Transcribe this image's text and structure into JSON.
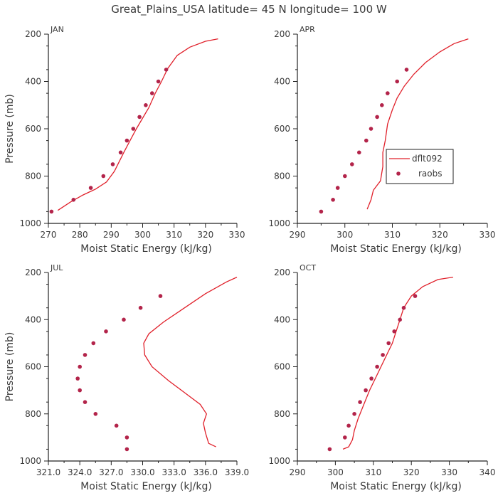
{
  "title": "Great_Plains_USA   latitude= 45 N longitude= 100 W",
  "colors": {
    "model": "#e0202a",
    "obs": "#b3244a",
    "axis": "#222222",
    "text": "#3a3a3a"
  },
  "legend": {
    "model": "dflt092",
    "obs": "raobs",
    "panel": 1
  },
  "chart_data": [
    {
      "type": "line",
      "panel": "JAN",
      "xlabel": "Moist Static Energy (kJ/kg)",
      "ylabel": "Pressure (mb)",
      "xlim": [
        270,
        330
      ],
      "ylim": [
        1000,
        200
      ],
      "xticks": [
        270,
        280,
        290,
        300,
        310,
        320,
        330
      ],
      "xtick_labels": [
        "270",
        "280",
        "290",
        "300",
        "310",
        "320",
        "330"
      ],
      "yticks": [
        200,
        400,
        600,
        800,
        1000
      ],
      "ytick_labels": [
        "200",
        "400",
        "600",
        "800",
        "1000"
      ],
      "series": [
        {
          "points": [
            [
              273,
              945
            ],
            [
              277,
              910
            ],
            [
              281,
              880
            ],
            [
              285,
              855
            ],
            [
              288.5,
              825
            ],
            [
              291,
              780
            ],
            [
              292.5,
              740
            ],
            [
              294,
              700
            ],
            [
              296,
              650
            ],
            [
              298,
              600
            ],
            [
              300,
              555
            ],
            [
              302,
              510
            ],
            [
              304,
              450
            ],
            [
              306,
              400
            ],
            [
              308,
              345
            ],
            [
              311,
              290
            ],
            [
              315,
              255
            ],
            [
              320,
              230
            ],
            [
              324,
              220
            ]
          ]
        },
        {
          "points": [
            [
              271,
              950
            ],
            [
              278,
              900
            ],
            [
              283.5,
              850
            ],
            [
              287.5,
              800
            ],
            [
              290.5,
              750
            ],
            [
              293,
              700
            ],
            [
              295,
              650
            ],
            [
              297,
              600
            ],
            [
              299,
              550
            ],
            [
              301,
              500
            ],
            [
              303,
              450
            ],
            [
              305,
              400
            ],
            [
              307.5,
              350
            ]
          ]
        }
      ]
    },
    {
      "type": "line",
      "panel": "APR",
      "xlabel": "Moist Static Energy (kJ/kg)",
      "ylabel": "",
      "xlim": [
        290,
        330
      ],
      "ylim": [
        1000,
        200
      ],
      "xticks": [
        290,
        300,
        310,
        320,
        330
      ],
      "xtick_labels": [
        "290",
        "300",
        "310",
        "320",
        "330"
      ],
      "yticks": [
        200,
        400,
        600,
        800,
        1000
      ],
      "ytick_labels": [
        "200",
        "400",
        "600",
        "800",
        "1000"
      ],
      "series": [
        {
          "points": [
            [
              304.7,
              940
            ],
            [
              305.5,
              900
            ],
            [
              306,
              860
            ],
            [
              307.5,
              820
            ],
            [
              308,
              760
            ],
            [
              308,
              700
            ],
            [
              308.5,
              650
            ],
            [
              309,
              580
            ],
            [
              310,
              520
            ],
            [
              311,
              470
            ],
            [
              312.5,
              420
            ],
            [
              314.5,
              370
            ],
            [
              317,
              320
            ],
            [
              320,
              275
            ],
            [
              323,
              240
            ],
            [
              326,
              220
            ]
          ]
        },
        {
          "points": [
            [
              295,
              950
            ],
            [
              297.5,
              900
            ],
            [
              298.5,
              850
            ],
            [
              300,
              800
            ],
            [
              301.5,
              750
            ],
            [
              303,
              700
            ],
            [
              304.5,
              650
            ],
            [
              305.5,
              600
            ],
            [
              306.8,
              550
            ],
            [
              307.8,
              500
            ],
            [
              309,
              450
            ],
            [
              311,
              400
            ],
            [
              313,
              350
            ]
          ]
        }
      ]
    },
    {
      "type": "line",
      "panel": "JUL",
      "xlabel": "Moist Static Energy (kJ/kg)",
      "ylabel": "Pressure (mb)",
      "xlim": [
        321,
        339
      ],
      "ylim": [
        1000,
        200
      ],
      "xticks": [
        321,
        324,
        327,
        330,
        333,
        336,
        339
      ],
      "xtick_labels": [
        "321.0",
        "324.0",
        "327.0",
        "330.0",
        "333.0",
        "336.0",
        "339.0"
      ],
      "yticks": [
        200,
        400,
        600,
        800,
        1000
      ],
      "ytick_labels": [
        "200",
        "400",
        "600",
        "800",
        "1000"
      ],
      "series": [
        {
          "points": [
            [
              337,
              940
            ],
            [
              336.3,
              925
            ],
            [
              336,
              880
            ],
            [
              335.8,
              840
            ],
            [
              336.1,
              800
            ],
            [
              335.5,
              760
            ],
            [
              334,
              710
            ],
            [
              332.5,
              660
            ],
            [
              330.9,
              600
            ],
            [
              330.2,
              550
            ],
            [
              330.1,
              500
            ],
            [
              330.6,
              460
            ],
            [
              332,
              410
            ],
            [
              334,
              350
            ],
            [
              336,
              290
            ],
            [
              338,
              240
            ],
            [
              339,
              220
            ]
          ]
        },
        {
          "points": [
            [
              328.5,
              950
            ],
            [
              328.5,
              900
            ],
            [
              327.5,
              850
            ],
            [
              325.5,
              800
            ],
            [
              324.5,
              750
            ],
            [
              324,
              700
            ],
            [
              323.8,
              650
            ],
            [
              324,
              600
            ],
            [
              324.5,
              550
            ],
            [
              325.3,
              500
            ],
            [
              326.5,
              450
            ],
            [
              328.2,
              400
            ],
            [
              329.8,
              350
            ],
            [
              331.7,
              300
            ]
          ]
        }
      ]
    },
    {
      "type": "line",
      "panel": "OCT",
      "xlabel": "Moist Static Energy (kJ/kg)",
      "ylabel": "",
      "xlim": [
        290,
        340
      ],
      "ylim": [
        1000,
        200
      ],
      "xticks": [
        290,
        300,
        310,
        320,
        330,
        340
      ],
      "xtick_labels": [
        "290",
        "300",
        "310",
        "320",
        "330",
        "340"
      ],
      "yticks": [
        200,
        400,
        600,
        800,
        1000
      ],
      "ytick_labels": [
        "200",
        "400",
        "600",
        "800",
        "1000"
      ],
      "series": [
        {
          "points": [
            [
              302,
              950
            ],
            [
              303.5,
              940
            ],
            [
              304.5,
              910
            ],
            [
              305,
              870
            ],
            [
              306,
              820
            ],
            [
              307.5,
              760
            ],
            [
              309,
              700
            ],
            [
              310.5,
              650
            ],
            [
              312,
              600
            ],
            [
              313.5,
              550
            ],
            [
              315,
              500
            ],
            [
              316,
              450
            ],
            [
              317,
              400
            ],
            [
              318,
              350
            ],
            [
              320,
              300
            ],
            [
              323,
              260
            ],
            [
              327,
              230
            ],
            [
              331,
              220
            ]
          ]
        },
        {
          "points": [
            [
              298.5,
              950
            ],
            [
              302.5,
              900
            ],
            [
              303.5,
              850
            ],
            [
              305,
              800
            ],
            [
              306.5,
              750
            ],
            [
              308,
              700
            ],
            [
              309.5,
              650
            ],
            [
              311,
              600
            ],
            [
              312.5,
              550
            ],
            [
              314,
              500
            ],
            [
              315.5,
              450
            ],
            [
              317,
              400
            ],
            [
              318,
              350
            ],
            [
              321,
              300
            ]
          ]
        }
      ]
    }
  ]
}
